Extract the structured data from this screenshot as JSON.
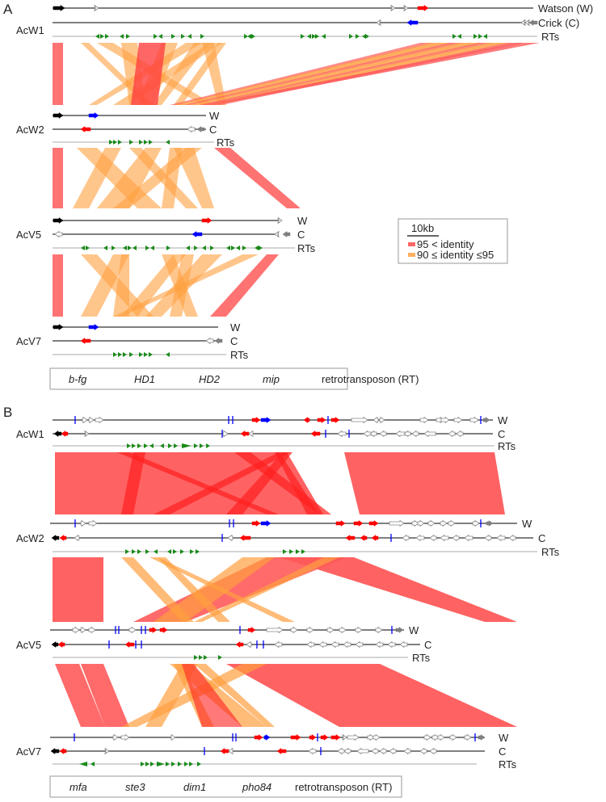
{
  "panels": [
    {
      "letter": "A",
      "strain_labels": [
        "AcW1",
        "AcW2",
        "AcV5",
        "AcV7"
      ],
      "track_labels_first": {
        "w": "Watson (W)",
        "c": "Crick (C)",
        "rt": "RTs"
      },
      "track_labels": {
        "w": "W",
        "c": "C",
        "rt": "RTs"
      },
      "legend": [
        {
          "label": "b-fg",
          "color": "#808080",
          "italic": true
        },
        {
          "label": "HD1",
          "color": "#ff0000",
          "italic": true
        },
        {
          "label": "HD2",
          "color": "#0000ff",
          "italic": true
        },
        {
          "label": "mip",
          "color": "#000000",
          "italic": true
        },
        {
          "label": "retrotransposon (RT)",
          "color": "#1a8a1a",
          "italic": false
        }
      ]
    },
    {
      "letter": "B",
      "strain_labels": [
        "AcW1",
        "AcW2",
        "AcV5",
        "AcV7"
      ],
      "track_labels": {
        "w": "W",
        "c": "C",
        "rt": "RTs"
      },
      "legend": [
        {
          "label": "mfa",
          "color": "#0000ff",
          "italic": true
        },
        {
          "label": "ste3",
          "color": "#ff0000",
          "italic": true
        },
        {
          "label": "dim1",
          "color": "#808080",
          "italic": true
        },
        {
          "label": "pho84",
          "color": "#000000",
          "italic": true
        },
        {
          "label": "retrotransposon (RT)",
          "color": "#1a8a1a",
          "italic": false
        }
      ]
    }
  ],
  "identity_legend": {
    "scale": "10kb",
    "items": [
      {
        "label": "95 < identity",
        "color": "#ff6666"
      },
      {
        "label": "90 ≤ identity ≤95",
        "color": "#ffb060"
      }
    ]
  },
  "colors": {
    "high_identity": "#ff5a5a",
    "mid_identity": "#ffa040",
    "rt": "#1a8a1a",
    "track": "#555555",
    "rt_track": "#aaaaaa"
  }
}
